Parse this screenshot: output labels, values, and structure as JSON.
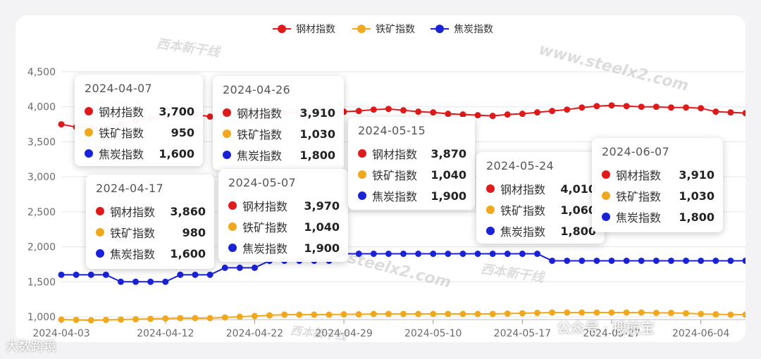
{
  "chart_data": {
    "type": "line",
    "legend_position": "top-center",
    "grid": true,
    "ylim": [
      1000,
      4500
    ],
    "yticks": [
      "1,000",
      "1,500",
      "2,000",
      "2,500",
      "3,000",
      "3,500",
      "4,000",
      "4,500"
    ],
    "xticks": [
      "2024-04-03",
      "2024-04-12",
      "2024-04-22",
      "2024-04-29",
      "2024-05-10",
      "2024-05-17",
      "2024-05-27",
      "2024-06-04"
    ],
    "x": [
      "2024-04-03",
      "2024-04-04",
      "2024-04-07",
      "2024-04-08",
      "2024-04-09",
      "2024-04-10",
      "2024-04-11",
      "2024-04-12",
      "2024-04-15",
      "2024-04-16",
      "2024-04-17",
      "2024-04-18",
      "2024-04-19",
      "2024-04-22",
      "2024-04-23",
      "2024-04-24",
      "2024-04-25",
      "2024-04-26",
      "2024-04-28",
      "2024-04-29",
      "2024-04-30",
      "2024-05-06",
      "2024-05-07",
      "2024-05-08",
      "2024-05-09",
      "2024-05-10",
      "2024-05-11",
      "2024-05-13",
      "2024-05-14",
      "2024-05-15",
      "2024-05-16",
      "2024-05-17",
      "2024-05-20",
      "2024-05-21",
      "2024-05-22",
      "2024-05-23",
      "2024-05-24",
      "2024-05-27",
      "2024-05-28",
      "2024-05-29",
      "2024-05-30",
      "2024-05-31",
      "2024-06-03",
      "2024-06-04",
      "2024-06-05",
      "2024-06-06",
      "2024-06-07"
    ],
    "series": [
      {
        "name": "钢材指数",
        "color": "#e01a1a",
        "values": [
          3750,
          3710,
          3700,
          3700,
          3750,
          3800,
          3840,
          3860,
          3880,
          3890,
          3860,
          3900,
          3910,
          3920,
          3915,
          3920,
          3915,
          3910,
          3920,
          3930,
          3940,
          3960,
          3970,
          3950,
          3930,
          3920,
          3900,
          3890,
          3880,
          3870,
          3890,
          3900,
          3920,
          3940,
          3960,
          3990,
          4010,
          4020,
          4010,
          4000,
          4000,
          3990,
          3990,
          3980,
          3930,
          3920,
          3910
        ]
      },
      {
        "name": "铁矿指数",
        "color": "#f0a81c",
        "values": [
          960,
          955,
          950,
          955,
          960,
          965,
          970,
          975,
          980,
          980,
          980,
          990,
          1000,
          1010,
          1020,
          1030,
          1030,
          1030,
          1030,
          1035,
          1035,
          1040,
          1040,
          1040,
          1040,
          1040,
          1040,
          1040,
          1040,
          1040,
          1045,
          1050,
          1055,
          1060,
          1060,
          1060,
          1060,
          1060,
          1060,
          1060,
          1055,
          1055,
          1050,
          1040,
          1035,
          1030,
          1030
        ]
      },
      {
        "name": "焦炭指数",
        "color": "#1a22d8",
        "values": [
          1600,
          1600,
          1600,
          1600,
          1500,
          1500,
          1500,
          1500,
          1600,
          1600,
          1600,
          1700,
          1700,
          1700,
          1800,
          1800,
          1800,
          1800,
          1800,
          1900,
          1900,
          1900,
          1900,
          1900,
          1900,
          1900,
          1900,
          1900,
          1900,
          1900,
          1900,
          1900,
          1900,
          1800,
          1800,
          1800,
          1800,
          1800,
          1800,
          1800,
          1800,
          1800,
          1800,
          1800,
          1800,
          1800,
          1800
        ]
      }
    ],
    "tooltips": [
      {
        "date": "2024-04-07",
        "values": [
          "3,700",
          "950",
          "1,600"
        ]
      },
      {
        "date": "2024-04-26",
        "values": [
          "3,910",
          "1,030",
          "1,800"
        ]
      },
      {
        "date": "2024-04-17",
        "values": [
          "3,860",
          "980",
          "1,600"
        ]
      },
      {
        "date": "2024-05-07",
        "values": [
          "3,970",
          "1,040",
          "1,900"
        ]
      },
      {
        "date": "2024-05-15",
        "values": [
          "3,870",
          "1,040",
          "1,900"
        ]
      },
      {
        "date": "2024-05-24",
        "values": [
          "4,010",
          "1,060",
          "1,800"
        ]
      },
      {
        "date": "2024-06-07",
        "values": [
          "3,910",
          "1,030",
          "1,800"
        ]
      }
    ]
  },
  "watermarks": {
    "site": "www.steelx2.com",
    "site_short": "steelx2.com",
    "brand": "西本新干线"
  },
  "overlay": {
    "source": "大数跨境",
    "wechat": "公众号 · 搜航宝"
  }
}
